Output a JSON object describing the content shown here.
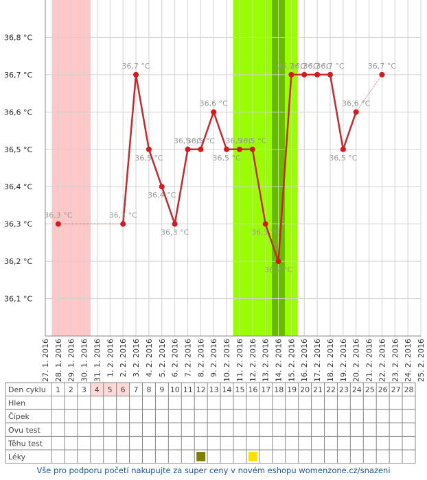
{
  "chart_data": {
    "type": "line",
    "categories": [
      "27. 1. 2016",
      "28. 1. 2016",
      "29. 1. 2016",
      "30. 1. 2016",
      "31. 1. 2016",
      "1. 2. 2016",
      "2. 2. 2016",
      "3. 2. 2016",
      "4. 2. 2016",
      "5. 2. 2016",
      "6. 2. 2016",
      "7. 2. 2016",
      "8. 2. 2016",
      "9. 2. 2016",
      "10. 2. 2016",
      "11. 2. 2016",
      "12. 2. 2016",
      "13. 2. 2016",
      "14. 2. 2016",
      "15. 2. 2016",
      "16. 2. 2016",
      "17. 2. 2016",
      "18. 2. 2016",
      "19. 2. 2016",
      "20. 2. 2016",
      "21. 2. 2016",
      "22. 2. 2016",
      "23. 2. 2016",
      "24. 2. 2016",
      "25. 2. 2016"
    ],
    "values": [
      null,
      36.3,
      null,
      null,
      null,
      null,
      36.3,
      36.7,
      36.5,
      36.4,
      36.3,
      36.5,
      36.5,
      36.6,
      36.5,
      36.5,
      36.5,
      36.3,
      36.2,
      36.7,
      36.7,
      36.7,
      36.7,
      36.5,
      36.6,
      null,
      36.7,
      null,
      null,
      null
    ],
    "value_labels": [
      null,
      "36,3 °C",
      null,
      null,
      null,
      null,
      "36,3 °C",
      "36,7 °C",
      "36,5 °C",
      "36,4 °C",
      "36,3 °C",
      "36,5 °C",
      "36,5 °C",
      "36,6 °C",
      "36,5 °C",
      "36,5 °C",
      "36,5 °C",
      "36,3 °C",
      "36,2 °C",
      "36,7 °C",
      "36,7 °C",
      "36,7 °C",
      "36,7 °C",
      "36,5 °C",
      "36,6 °C",
      null,
      "36,7 °C",
      null,
      null,
      null
    ],
    "color": "#c8282d",
    "ylim": [
      36.0,
      36.9
    ],
    "yticks": [
      {
        "value": 36.1,
        "label": "36,1 °C"
      },
      {
        "value": 36.2,
        "label": "36,2 °C"
      },
      {
        "value": 36.3,
        "label": "36,3 °C"
      },
      {
        "value": 36.4,
        "label": "36,4 °C"
      },
      {
        "value": 36.5,
        "label": "36,5 °C"
      },
      {
        "value": 36.6,
        "label": "36,6 °C"
      },
      {
        "value": 36.7,
        "label": "36,7 °C"
      },
      {
        "value": 36.8,
        "label": "36,8 °C"
      }
    ],
    "grid": true,
    "bands": [
      {
        "from": "28. 1. 2016",
        "to": "30. 1. 2016",
        "color": "#ffc8c8"
      },
      {
        "from": "11. 2. 2016",
        "to": "15. 2. 2016",
        "color": "#99ff00"
      },
      {
        "from": "14. 2. 2016",
        "to": "14. 2. 2016",
        "color": "#66bb00"
      }
    ]
  },
  "table": {
    "rows": [
      "Den cyklu",
      "Hlen",
      "Čípek",
      "Ovu test",
      "Těhu test",
      "Léky"
    ],
    "days": [
      1,
      2,
      3,
      4,
      5,
      6,
      7,
      8,
      9,
      10,
      11,
      12,
      13,
      14,
      15,
      16,
      17,
      18,
      19,
      20,
      21,
      22,
      23,
      24,
      25,
      26,
      27,
      28
    ],
    "highlight": {
      "days": [
        4,
        5,
        6
      ],
      "color": "#ffd8d8"
    },
    "medication": [
      {
        "day": 12,
        "color": "#808000"
      },
      {
        "day": 16,
        "color": "#ffe000"
      }
    ]
  },
  "footer": "Vše pro podporu početí nakupujte za super ceny v novém eshopu womenzone.cz/snazeni"
}
